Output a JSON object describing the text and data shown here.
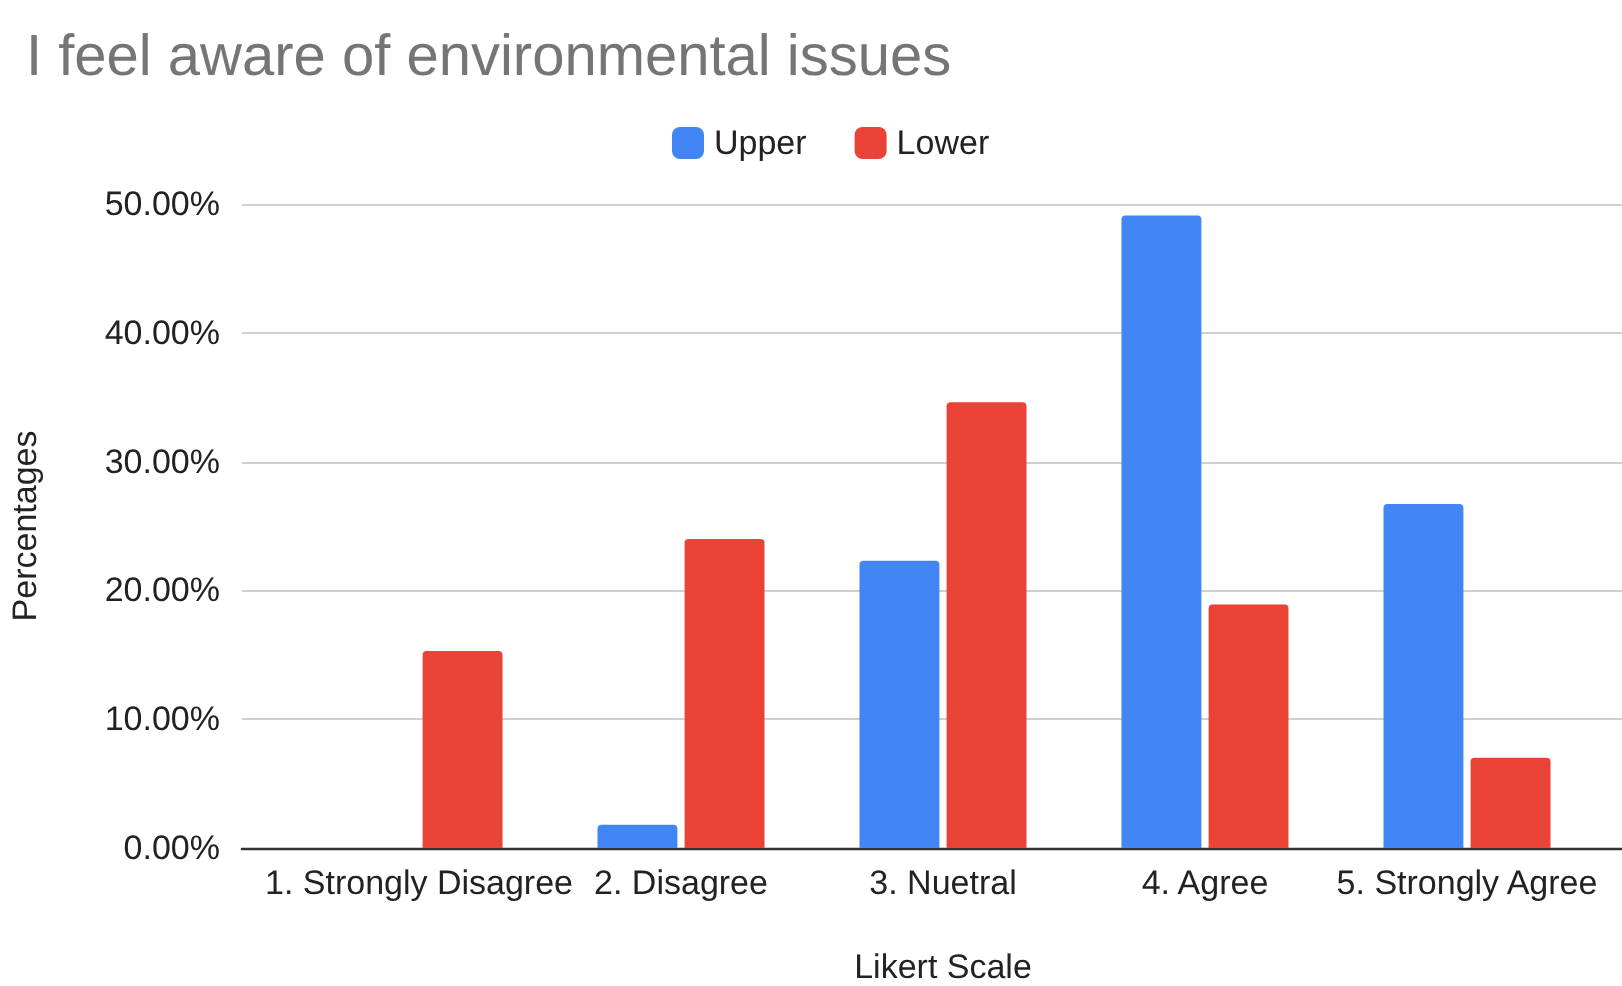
{
  "chart_data": {
    "type": "bar",
    "title": "I feel aware of environmental issues",
    "xlabel": "Likert Scale",
    "ylabel": "Percentages",
    "categories": [
      "1. Strongly Disagree",
      "2. Disagree",
      "3. Nuetral",
      "4. Agree",
      "5. Strongly Agree"
    ],
    "series": [
      {
        "name": "Upper",
        "color": "#4285f4",
        "values": [
          0,
          1.8,
          22.3,
          49.1,
          26.7
        ]
      },
      {
        "name": "Lower",
        "color": "#ea4335",
        "values": [
          15.3,
          24.0,
          34.6,
          18.9,
          7.0
        ]
      }
    ],
    "ylim": [
      0,
      50
    ],
    "yticks": [
      {
        "value": 0,
        "label": "0.00%"
      },
      {
        "value": 10,
        "label": "10.00%"
      },
      {
        "value": 20,
        "label": "20.00%"
      },
      {
        "value": 30,
        "label": "30.00%"
      },
      {
        "value": 40,
        "label": "40.00%"
      },
      {
        "value": 50,
        "label": "50.00%"
      }
    ],
    "grid": "y",
    "legend": "top"
  }
}
